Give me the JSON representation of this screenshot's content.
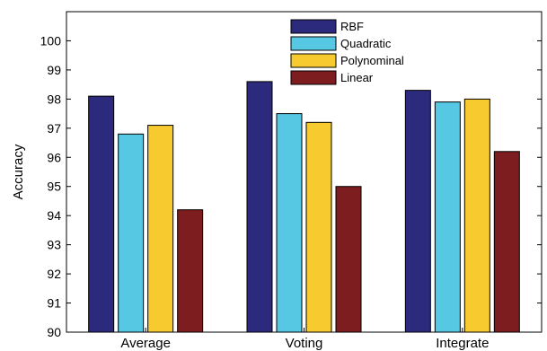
{
  "chart_data": {
    "type": "bar",
    "title": "",
    "xlabel": "",
    "ylabel": "Accuracy",
    "ylim": [
      90,
      101
    ],
    "yticks": [
      90,
      91,
      92,
      93,
      94,
      95,
      96,
      97,
      98,
      99,
      100
    ],
    "categories": [
      "Average",
      "Voting",
      "Integrate"
    ],
    "legend_position": "top-center",
    "grid": false,
    "series": [
      {
        "name": "RBF",
        "color": "#2b2a7c",
        "values": [
          98.1,
          98.6,
          98.3
        ]
      },
      {
        "name": "Quadratic",
        "color": "#56c8e4",
        "values": [
          96.8,
          97.5,
          97.9
        ]
      },
      {
        "name": "Polynominal",
        "color": "#f7cb30",
        "values": [
          97.1,
          97.2,
          98.0
        ]
      },
      {
        "name": "Linear",
        "color": "#7e1d1f",
        "values": [
          94.2,
          95.0,
          96.2
        ]
      }
    ]
  }
}
